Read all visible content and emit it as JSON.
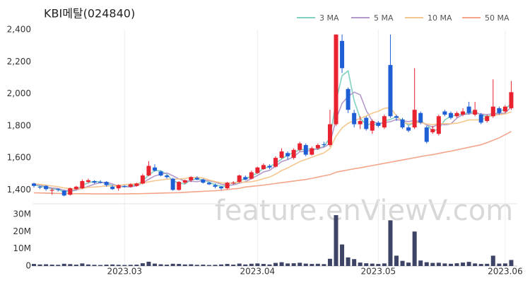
{
  "chart_data": {
    "type": "candlestick",
    "title": "KBI메탈(024840)",
    "watermark": "feature.enViewV.com",
    "categories": [
      null,
      null,
      null,
      null,
      null,
      null,
      null,
      null,
      null,
      null,
      null,
      null,
      null,
      null,
      null,
      "2023.03",
      null,
      null,
      null,
      null,
      null,
      null,
      null,
      null,
      null,
      null,
      null,
      null,
      null,
      null,
      null,
      null,
      null,
      null,
      null,
      null,
      null,
      "2023.04",
      null,
      null,
      null,
      null,
      null,
      null,
      null,
      null,
      null,
      null,
      null,
      null,
      null,
      null,
      null,
      null,
      null,
      null,
      null,
      "2023.05",
      null,
      null,
      null,
      null,
      null,
      null,
      null,
      null,
      null,
      null,
      null,
      null,
      null,
      null,
      null,
      null,
      null,
      null,
      null,
      null,
      "2023.06",
      null
    ],
    "open": [
      1440,
      1420,
      1425,
      1395,
      1405,
      1395,
      1370,
      1405,
      1410,
      1450,
      1455,
      1450,
      1450,
      1420,
      1410,
      1425,
      1420,
      1425,
      1440,
      1490,
      1540,
      1515,
      1490,
      1470,
      1400,
      1445,
      1460,
      1475,
      1465,
      1445,
      1430,
      1420,
      1410,
      1440,
      1450,
      1480,
      1470,
      1505,
      1530,
      1550,
      1545,
      1600,
      1630,
      1600,
      1650,
      1680,
      1620,
      1660,
      1685,
      1680,
      1810,
      2330,
      2030,
      1880,
      1810,
      1850,
      1770,
      1820,
      1790,
      2180,
      1860,
      1840,
      1790,
      1790,
      1880,
      1790,
      1760,
      1750,
      1890,
      1880,
      1860,
      1870,
      1920,
      1870,
      1870,
      1830,
      1860,
      1910,
      1890,
      1910
    ],
    "high": [
      1445,
      1425,
      1430,
      1410,
      1410,
      1400,
      1415,
      1425,
      1465,
      1470,
      1460,
      1460,
      1455,
      1430,
      1435,
      1430,
      1440,
      1445,
      1500,
      1580,
      1560,
      1520,
      1495,
      1475,
      1455,
      1465,
      1485,
      1485,
      1470,
      1450,
      1440,
      1425,
      1450,
      1455,
      1495,
      1490,
      1520,
      1545,
      1565,
      1560,
      1610,
      1660,
      1640,
      1660,
      1700,
      1690,
      1670,
      1690,
      1700,
      1900,
      2370,
      2370,
      2040,
      1900,
      1860,
      1860,
      1840,
      1830,
      1870,
      2370,
      1870,
      1850,
      1800,
      2160,
      1890,
      1800,
      1800,
      1870,
      1900,
      1890,
      1890,
      1910,
      1950,
      1950,
      1880,
      1870,
      2090,
      1920,
      1930,
      2080
    ],
    "low": [
      1415,
      1405,
      1395,
      1370,
      1390,
      1360,
      1365,
      1400,
      1405,
      1440,
      1440,
      1440,
      1420,
      1400,
      1395,
      1415,
      1415,
      1420,
      1435,
      1485,
      1515,
      1485,
      1470,
      1395,
      1395,
      1435,
      1450,
      1460,
      1440,
      1430,
      1410,
      1400,
      1405,
      1435,
      1445,
      1460,
      1465,
      1500,
      1525,
      1530,
      1540,
      1595,
      1590,
      1590,
      1640,
      1610,
      1615,
      1650,
      1670,
      1670,
      1800,
      2130,
      1880,
      1790,
      1780,
      1770,
      1750,
      1790,
      1780,
      1850,
      1830,
      1780,
      1760,
      1780,
      1810,
      1690,
      1750,
      1740,
      1860,
      1840,
      1850,
      1860,
      1870,
      1860,
      1810,
      1820,
      1850,
      1870,
      1880,
      1900
    ],
    "close": [
      1425,
      1415,
      1405,
      1400,
      1400,
      1365,
      1410,
      1420,
      1455,
      1460,
      1445,
      1445,
      1430,
      1405,
      1430,
      1420,
      1435,
      1440,
      1490,
      1550,
      1520,
      1490,
      1480,
      1400,
      1450,
      1460,
      1480,
      1465,
      1445,
      1435,
      1420,
      1410,
      1445,
      1445,
      1490,
      1465,
      1510,
      1540,
      1555,
      1540,
      1600,
      1640,
      1610,
      1650,
      1690,
      1620,
      1660,
      1680,
      1680,
      1810,
      2370,
      2160,
      1900,
      1810,
      1830,
      1780,
      1830,
      1800,
      1860,
      1860,
      1850,
      1790,
      1770,
      1900,
      1820,
      1700,
      1780,
      1860,
      1870,
      1850,
      1880,
      1890,
      1880,
      1900,
      1820,
      1860,
      1920,
      1880,
      1920,
      2010
    ],
    "volume": [
      1200000,
      900000,
      1000000,
      800000,
      700000,
      1300000,
      1100000,
      800000,
      1500000,
      900000,
      700000,
      600000,
      800000,
      900000,
      700000,
      600000,
      700000,
      800000,
      1600000,
      2500000,
      1400000,
      1000000,
      800000,
      1300000,
      1200000,
      900000,
      1000000,
      700000,
      800000,
      600000,
      700000,
      900000,
      1200000,
      800000,
      1400000,
      900000,
      1300000,
      1500000,
      1200000,
      900000,
      1800000,
      2200000,
      1500000,
      1600000,
      1900000,
      1400000,
      1200000,
      1300000,
      1100000,
      4200000,
      29500000,
      12500000,
      5000000,
      4000000,
      2000000,
      1600000,
      1400000,
      1200000,
      1500000,
      26500000,
      6000000,
      3000000,
      2000000,
      20000000,
      3200000,
      2200000,
      1800000,
      1900000,
      1500000,
      1300000,
      1600000,
      2000000,
      2400000,
      1500000,
      1200000,
      1300000,
      6000000,
      1400000,
      1500000,
      3500000
    ],
    "up_color": "#e8222e",
    "down_color": "#1e5fd6",
    "volume_color": "#3d4466",
    "series": [
      {
        "name": "3 MA",
        "color": "#7fd1c0",
        "values": [
          1430,
          1425,
          1415,
          1407,
          1402,
          1388,
          1392,
          1398,
          1428,
          1445,
          1453,
          1450,
          1440,
          1427,
          1422,
          1418,
          1428,
          1432,
          1455,
          1493,
          1520,
          1520,
          1497,
          1457,
          1443,
          1437,
          1463,
          1468,
          1463,
          1448,
          1433,
          1422,
          1425,
          1433,
          1460,
          1467,
          1488,
          1505,
          1535,
          1545,
          1565,
          1593,
          1617,
          1633,
          1650,
          1653,
          1657,
          1653,
          1673,
          1723,
          1953,
          2113,
          2143,
          1957,
          1847,
          1807,
          1813,
          1803,
          1830,
          1840,
          1857,
          1833,
          1803,
          1820,
          1830,
          1807,
          1767,
          1780,
          1837,
          1860,
          1867,
          1873,
          1883,
          1890,
          1867,
          1860,
          1867,
          1887,
          1907,
          1937
        ]
      },
      {
        "name": "5 MA",
        "color": "#b49acb",
        "values": [
          1435,
          1430,
          1420,
          1412,
          1409,
          1397,
          1396,
          1400,
          1410,
          1422,
          1436,
          1445,
          1447,
          1437,
          1423,
          1420,
          1418,
          1426,
          1443,
          1467,
          1487,
          1498,
          1506,
          1488,
          1468,
          1456,
          1454,
          1451,
          1460,
          1457,
          1449,
          1435,
          1431,
          1431,
          1442,
          1451,
          1471,
          1490,
          1512,
          1522,
          1549,
          1577,
          1589,
          1608,
          1638,
          1642,
          1646,
          1660,
          1666,
          1690,
          1840,
          1940,
          1984,
          2010,
          1994,
          1896,
          1830,
          1810,
          1820,
          1826,
          1840,
          1832,
          1826,
          1834,
          1826,
          1806,
          1792,
          1812,
          1806,
          1812,
          1848,
          1870,
          1874,
          1880,
          1874,
          1870,
          1876,
          1876,
          1880,
          1918
        ]
      },
      {
        "name": "10 MA",
        "color": "#f5c78e",
        "values": [
          1438,
          1435,
          1430,
          1425,
          1420,
          1412,
          1408,
          1406,
          1410,
          1416,
          1418,
          1421,
          1424,
          1425,
          1428,
          1433,
          1436,
          1438,
          1441,
          1450,
          1457,
          1462,
          1467,
          1466,
          1468,
          1472,
          1477,
          1479,
          1474,
          1462,
          1452,
          1444,
          1440,
          1444,
          1448,
          1448,
          1451,
          1459,
          1470,
          1480,
          1498,
          1521,
          1537,
          1557,
          1577,
          1590,
          1604,
          1618,
          1631,
          1658,
          1735,
          1787,
          1816,
          1832,
          1846,
          1862,
          1879,
          1891,
          1909,
          1914,
          1862,
          1825,
          1812,
          1821,
          1820,
          1812,
          1807,
          1813,
          1814,
          1813,
          1816,
          1826,
          1837,
          1837,
          1837,
          1853,
          1867,
          1869,
          1874,
          1887
        ]
      },
      {
        "name": "50 MA",
        "color": "#f4a58a",
        "values": [
          1382,
          1381,
          1380,
          1379,
          1378,
          1377,
          1377,
          1376,
          1376,
          1376,
          1375,
          1375,
          1375,
          1375,
          1375,
          1375,
          1376,
          1376,
          1377,
          1378,
          1379,
          1380,
          1381,
          1382,
          1383,
          1385,
          1387,
          1389,
          1391,
          1393,
          1395,
          1398,
          1402,
          1406,
          1410,
          1418,
          1422,
          1426,
          1430,
          1435,
          1440,
          1445,
          1450,
          1455,
          1460,
          1465,
          1472,
          1480,
          1488,
          1495,
          1510,
          1518,
          1525,
          1532,
          1538,
          1545,
          1552,
          1559,
          1566,
          1573,
          1580,
          1587,
          1594,
          1601,
          1608,
          1615,
          1620,
          1628,
          1635,
          1642,
          1650,
          1658,
          1666,
          1674,
          1682,
          1695,
          1710,
          1725,
          1745,
          1765
        ]
      }
    ],
    "ylim": [
      1340,
      2400
    ],
    "yticks": [
      {
        "value": 1400,
        "label": "1,400"
      },
      {
        "value": 1600,
        "label": "1,600"
      },
      {
        "value": 1800,
        "label": "1,800"
      },
      {
        "value": 2000,
        "label": "2,000"
      },
      {
        "value": 2200,
        "label": "2,200"
      },
      {
        "value": 2400,
        "label": "2,400"
      }
    ],
    "volume_ylim": [
      0,
      32000000
    ],
    "volume_yticks": [
      0,
      {
        "value": 10000000,
        "label": "10M"
      },
      {
        "value": 20000000,
        "label": "20M"
      },
      {
        "value": 30000000,
        "label": "30M"
      }
    ]
  }
}
